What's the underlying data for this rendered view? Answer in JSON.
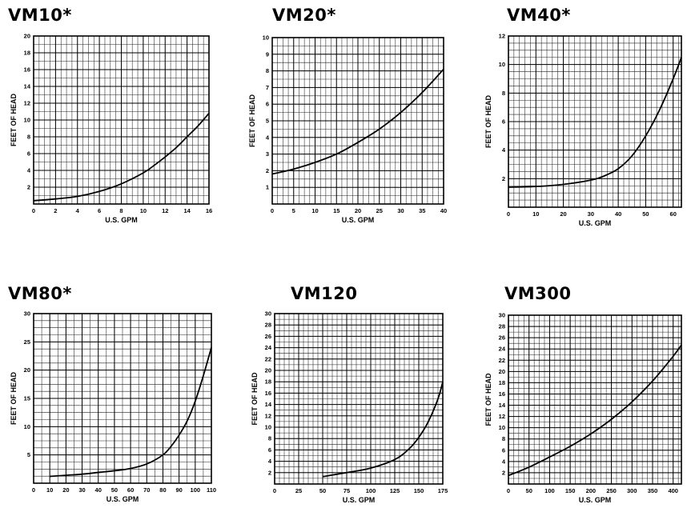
{
  "chart_data": [
    {
      "type": "line",
      "title": "VM10*",
      "xlabel": "U.S. GPM",
      "ylabel": "FEET OF HEAD",
      "xlim": [
        0,
        16
      ],
      "ylim": [
        0,
        20
      ],
      "xticks": [
        0,
        2,
        4,
        6,
        8,
        10,
        12,
        14,
        16
      ],
      "yticks": [
        2,
        4,
        6,
        8,
        10,
        12,
        14,
        16,
        18,
        20
      ],
      "grid": {
        "x_minor_step": 0.5,
        "y_minor_step": 1
      },
      "series": [
        {
          "x": [
            0,
            2,
            4,
            6,
            8,
            10,
            11,
            12,
            13,
            14,
            15,
            16
          ],
          "y": [
            0.4,
            0.6,
            0.9,
            1.5,
            2.4,
            3.7,
            4.6,
            5.6,
            6.7,
            8.0,
            9.3,
            10.8
          ]
        }
      ]
    },
    {
      "type": "line",
      "title": "VM20*",
      "xlabel": "U.S. GPM",
      "ylabel": "FEET OF HEAD",
      "xlim": [
        0,
        40
      ],
      "ylim": [
        0,
        10
      ],
      "xticks": [
        0,
        5,
        10,
        15,
        20,
        25,
        30,
        35,
        40
      ],
      "yticks": [
        1,
        2,
        3,
        4,
        5,
        6,
        7,
        8,
        9,
        10
      ],
      "grid": {
        "x_minor_step": 1.25,
        "y_minor_step": 0.5
      },
      "series": [
        {
          "x": [
            0,
            5,
            10,
            15,
            20,
            25,
            30,
            35,
            40
          ],
          "y": [
            1.8,
            2.1,
            2.5,
            3.0,
            3.7,
            4.5,
            5.5,
            6.7,
            8.1
          ]
        }
      ]
    },
    {
      "type": "line",
      "title": "VM40*",
      "xlabel": "U.S. GPM",
      "ylabel": "FEET OF HEAD",
      "xlim": [
        0,
        63
      ],
      "ylim": [
        0,
        12
      ],
      "xticks": [
        0,
        10,
        20,
        30,
        40,
        50,
        60
      ],
      "yticks": [
        2,
        4,
        6,
        8,
        10,
        12
      ],
      "grid": {
        "x_minor_step": 2,
        "y_minor_step": 0.5
      },
      "series": [
        {
          "x": [
            0,
            10,
            20,
            30,
            35,
            40,
            45,
            50,
            55,
            60,
            63
          ],
          "y": [
            1.4,
            1.45,
            1.6,
            1.9,
            2.2,
            2.7,
            3.6,
            5.0,
            6.8,
            9.0,
            10.5
          ]
        }
      ]
    },
    {
      "type": "line",
      "title": "VM80*",
      "xlabel": "U.S. GPM",
      "ylabel": "FEET OF HEAD",
      "xlim": [
        0,
        110
      ],
      "ylim": [
        0,
        30
      ],
      "xticks": [
        0,
        10,
        20,
        30,
        40,
        50,
        60,
        70,
        80,
        90,
        100,
        110
      ],
      "yticks": [
        5,
        10,
        15,
        20,
        25,
        30
      ],
      "grid": {
        "x_minor_step": 5,
        "y_minor_step": 1.25
      },
      "series": [
        {
          "x": [
            10,
            20,
            30,
            40,
            50,
            60,
            70,
            80,
            85,
            90,
            95,
            100,
            105,
            110
          ],
          "y": [
            1.2,
            1.4,
            1.6,
            1.9,
            2.2,
            2.6,
            3.4,
            5.0,
            6.5,
            8.5,
            11.0,
            14.5,
            19.0,
            24.0
          ]
        }
      ]
    },
    {
      "type": "line",
      "title": "VM120",
      "xlabel": "U.S. GPM",
      "ylabel": "FEET OF HEAD",
      "xlim": [
        0,
        175
      ],
      "ylim": [
        0,
        30
      ],
      "xticks": [
        0,
        25,
        50,
        75,
        100,
        125,
        150,
        175
      ],
      "yticks": [
        2,
        4,
        6,
        8,
        10,
        12,
        14,
        16,
        18,
        20,
        22,
        24,
        26,
        28,
        30
      ],
      "grid": {
        "x_minor_step": 5,
        "y_minor_step": 1
      },
      "series": [
        {
          "x": [
            50,
            75,
            100,
            125,
            140,
            150,
            160,
            170,
            175
          ],
          "y": [
            1.3,
            2.0,
            2.8,
            4.3,
            6.2,
            8.2,
            11.0,
            15.0,
            18.0
          ]
        }
      ]
    },
    {
      "type": "line",
      "title": "VM300",
      "xlabel": "U.S. GPM",
      "ylabel": "FEET OF HEAD",
      "xlim": [
        0,
        420
      ],
      "ylim": [
        0,
        30
      ],
      "xticks": [
        0,
        50,
        100,
        150,
        200,
        250,
        300,
        350,
        400
      ],
      "yticks": [
        2,
        4,
        6,
        8,
        10,
        12,
        14,
        16,
        18,
        20,
        22,
        24,
        26,
        28,
        30
      ],
      "grid": {
        "x_minor_step": 12.5,
        "y_minor_step": 1
      },
      "series": [
        {
          "x": [
            0,
            50,
            100,
            150,
            200,
            250,
            300,
            350,
            400,
            420
          ],
          "y": [
            1.5,
            3.0,
            4.8,
            6.7,
            8.9,
            11.5,
            14.6,
            18.3,
            22.7,
            24.7
          ]
        }
      ]
    }
  ]
}
